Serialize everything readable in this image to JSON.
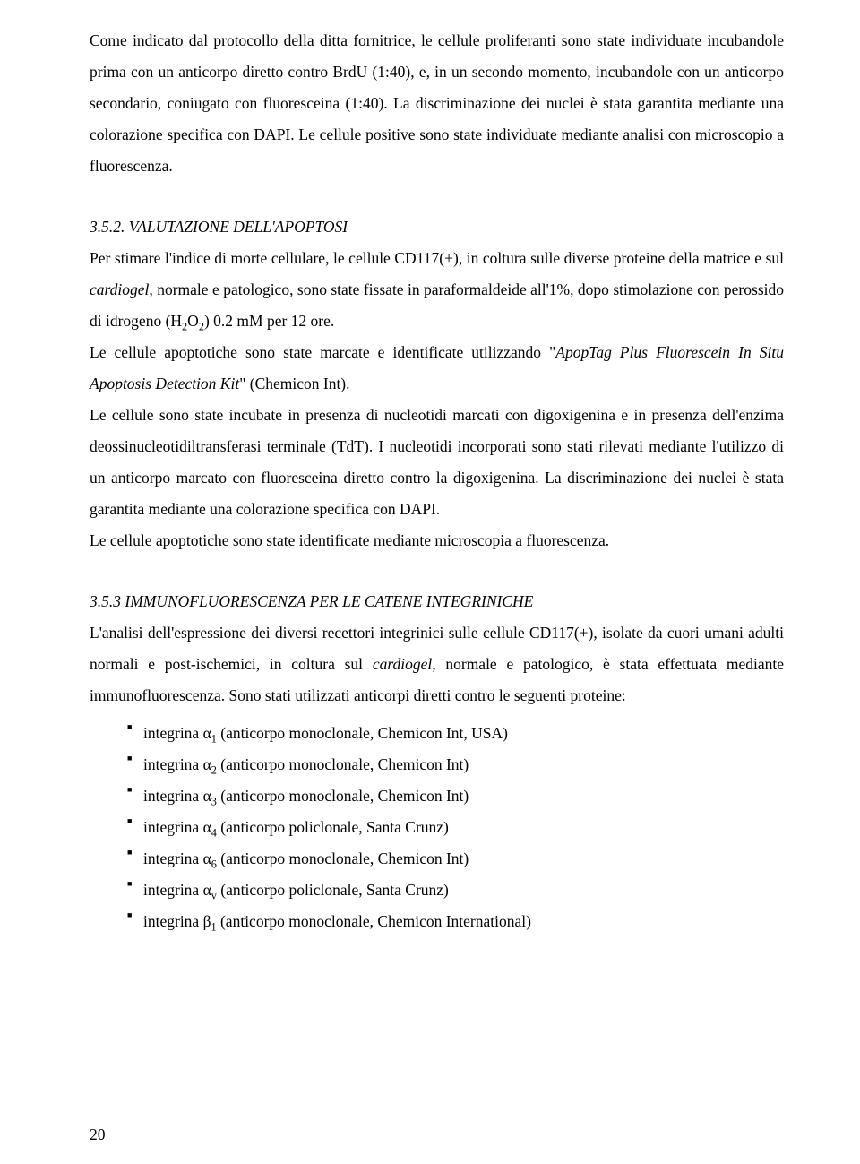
{
  "para1": "Come indicato dal protocollo della ditta fornitrice, le cellule proliferanti sono state individuate incubandole prima con un anticorpo diretto contro BrdU (1:40), e, in un secondo momento, incubandole con un anticorpo secondario, coniugato con fluoresceina (1:40). La discriminazione dei nuclei è stata garantita mediante una colorazione specifica con DAPI. Le cellule positive sono state individuate mediante analisi con microscopio a fluorescenza.",
  "s352_title": "3.5.2. VALUTAZIONE DELL'APOPTOSI",
  "s352_p1_a": "Per stimare l'indice di morte cellulare, le cellule CD117(+), in coltura sulle diverse proteine della matrice e sul ",
  "s352_p1_cardiogel": "cardiogel",
  "s352_p1_b": ", normale e patologico, sono state fissate in paraformaldeide all'1%, dopo stimolazione con perossido di idrogeno (H",
  "s352_p1_c": "O",
  "s352_p1_d": ") 0.2 mM  per 12 ore.",
  "s352_p2_a": "Le cellule apoptotiche sono state marcate e identificate utilizzando \"",
  "s352_p2_ital": "ApopTag Plus Fluorescein In Situ Apoptosis Detection Kit",
  "s352_p2_b": "\" (Chemicon Int).",
  "s352_p3": "Le cellule sono state incubate in presenza di nucleotidi marcati con digoxigenina e in presenza dell'enzima deossinucleotidiltransferasi terminale (TdT). I nucleotidi incorporati sono stati rilevati mediante l'utilizzo di un anticorpo marcato con fluoresceina diretto contro la digoxigenina. La discriminazione dei nuclei è stata garantita mediante una colorazione specifica con DAPI.",
  "s352_p4": "Le cellule apoptotiche sono state identificate mediante microscopia a fluorescenza.",
  "s353_title": "3.5.3  IMMUNOFLUORESCENZA PER LE CATENE INTEGRINICHE",
  "s353_p1_a": "L'analisi dell'espressione dei diversi recettori integrinici sulle cellule CD117(+), isolate da cuori umani adulti normali e post-ischemici, in coltura sul ",
  "s353_p1_cardiogel": "cardiogel",
  "s353_p1_b": ", normale e patologico, è stata effettuata mediante immunofluorescenza. Sono stati utilizzati anticorpi diretti contro le seguenti proteine:",
  "bullets": {
    "b1_a": "integrina α",
    "b1_sub": "1",
    "b1_b": " (anticorpo monoclonale, Chemicon Int, USA)",
    "b2_a": "integrina α",
    "b2_sub": "2",
    "b2_b": " (anticorpo monoclonale, Chemicon Int)",
    "b3_a": "integrina α",
    "b3_sub": "3",
    "b3_b": " (anticorpo monoclonale, Chemicon Int)",
    "b4_a": "integrina α",
    "b4_sub": "4",
    "b4_b": " (anticorpo policlonale, Santa Crunz)",
    "b5_a": "integrina α",
    "b5_sub": "6",
    "b5_b": " (anticorpo monoclonale, Chemicon Int)",
    "b6_a": "integrina α",
    "b6_sub": "v",
    "b6_b": " (anticorpo policlonale, Santa Crunz)",
    "b7_a": "integrina β",
    "b7_sub": "1",
    "b7_b": " (anticorpo monoclonale, Chemicon International)"
  },
  "page_number": "20"
}
